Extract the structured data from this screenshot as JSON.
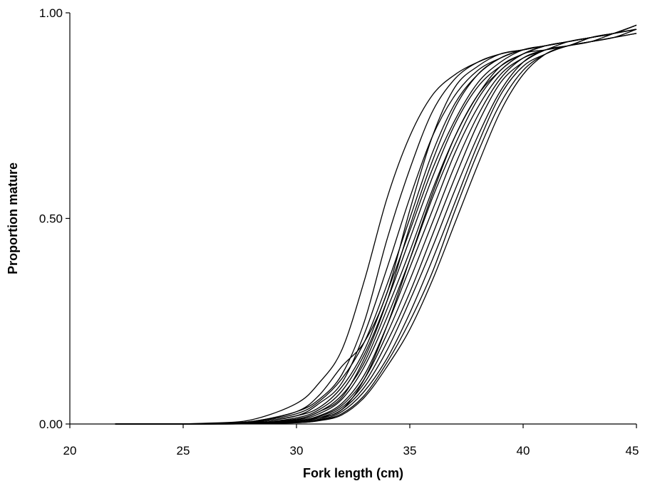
{
  "chart_data": {
    "type": "line",
    "title": "",
    "xlabel": "Fork length (cm)",
    "ylabel": "Proportion mature",
    "xlim": [
      20,
      45
    ],
    "ylim": [
      0,
      1
    ],
    "x_ticks": [
      20,
      25,
      30,
      35,
      40,
      45
    ],
    "x_tick_labels": [
      "20",
      "25",
      "30",
      "35",
      "40",
      "45"
    ],
    "y_ticks": [
      0,
      0.5,
      1
    ],
    "y_tick_labels": [
      "0.00",
      "0.50",
      "1.00"
    ],
    "grid": false,
    "legend": "none",
    "line_color": "#000000",
    "x": [
      22,
      24,
      26,
      28,
      30,
      31,
      32,
      33,
      34,
      35,
      36,
      37,
      38,
      39,
      40,
      41,
      42,
      43,
      44,
      45
    ],
    "series": [
      {
        "values": [
          0.0,
          0.0,
          0.002,
          0.01,
          0.05,
          0.1,
          0.18,
          0.35,
          0.55,
          0.7,
          0.8,
          0.85,
          0.88,
          0.9,
          0.91,
          0.92,
          0.93,
          0.94,
          0.95,
          0.96
        ]
      },
      {
        "values": [
          0.0,
          0.0,
          0.001,
          0.006,
          0.03,
          0.06,
          0.12,
          0.25,
          0.45,
          0.62,
          0.76,
          0.84,
          0.88,
          0.9,
          0.91,
          0.92,
          0.93,
          0.94,
          0.95,
          0.96
        ]
      },
      {
        "values": [
          0.0,
          0.0,
          0.001,
          0.004,
          0.02,
          0.05,
          0.1,
          0.22,
          0.38,
          0.55,
          0.7,
          0.8,
          0.86,
          0.89,
          0.91,
          0.92,
          0.93,
          0.94,
          0.95,
          0.97
        ]
      },
      {
        "values": [
          0.0,
          0.0,
          0.001,
          0.005,
          0.025,
          0.055,
          0.11,
          0.2,
          0.34,
          0.5,
          0.66,
          0.78,
          0.85,
          0.89,
          0.91,
          0.92,
          0.93,
          0.94,
          0.95,
          0.96
        ]
      },
      {
        "values": [
          0.0,
          0.0,
          0.0,
          0.003,
          0.02,
          0.04,
          0.09,
          0.18,
          0.32,
          0.47,
          0.62,
          0.74,
          0.83,
          0.88,
          0.91,
          0.92,
          0.93,
          0.94,
          0.95,
          0.96
        ]
      },
      {
        "values": [
          0.0,
          0.0,
          0.0,
          0.002,
          0.015,
          0.035,
          0.08,
          0.17,
          0.3,
          0.45,
          0.6,
          0.73,
          0.82,
          0.87,
          0.9,
          0.92,
          0.93,
          0.94,
          0.95,
          0.97
        ]
      },
      {
        "values": [
          0.0,
          0.0,
          0.0,
          0.002,
          0.012,
          0.03,
          0.07,
          0.15,
          0.28,
          0.42,
          0.57,
          0.7,
          0.8,
          0.87,
          0.9,
          0.92,
          0.93,
          0.94,
          0.95,
          0.96
        ]
      },
      {
        "values": [
          0.0,
          0.0,
          0.0,
          0.002,
          0.01,
          0.025,
          0.06,
          0.14,
          0.26,
          0.4,
          0.55,
          0.68,
          0.79,
          0.86,
          0.9,
          0.92,
          0.93,
          0.94,
          0.95,
          0.97
        ]
      },
      {
        "values": [
          0.0,
          0.0,
          0.0,
          0.001,
          0.008,
          0.02,
          0.05,
          0.12,
          0.24,
          0.38,
          0.52,
          0.66,
          0.77,
          0.85,
          0.89,
          0.91,
          0.93,
          0.94,
          0.95,
          0.96
        ]
      },
      {
        "values": [
          0.0,
          0.0,
          0.0,
          0.001,
          0.006,
          0.018,
          0.045,
          0.11,
          0.22,
          0.35,
          0.49,
          0.63,
          0.75,
          0.84,
          0.89,
          0.91,
          0.92,
          0.94,
          0.95,
          0.96
        ]
      },
      {
        "values": [
          0.0,
          0.0,
          0.0,
          0.001,
          0.005,
          0.015,
          0.04,
          0.1,
          0.2,
          0.32,
          0.46,
          0.6,
          0.73,
          0.83,
          0.88,
          0.91,
          0.92,
          0.93,
          0.95,
          0.97
        ]
      },
      {
        "values": [
          0.0,
          0.0,
          0.0,
          0.001,
          0.004,
          0.012,
          0.035,
          0.09,
          0.18,
          0.3,
          0.43,
          0.57,
          0.7,
          0.81,
          0.88,
          0.91,
          0.92,
          0.93,
          0.94,
          0.95
        ]
      },
      {
        "values": [
          0.0,
          0.0,
          0.0,
          0.001,
          0.004,
          0.01,
          0.03,
          0.08,
          0.16,
          0.27,
          0.4,
          0.54,
          0.68,
          0.8,
          0.87,
          0.9,
          0.92,
          0.93,
          0.94,
          0.95
        ]
      },
      {
        "values": [
          0.0,
          0.0,
          0.0,
          0.001,
          0.003,
          0.009,
          0.025,
          0.07,
          0.15,
          0.25,
          0.37,
          0.52,
          0.66,
          0.78,
          0.86,
          0.9,
          0.92,
          0.93,
          0.94,
          0.96
        ]
      },
      {
        "values": [
          0.0,
          0.0,
          0.0,
          0.001,
          0.003,
          0.008,
          0.022,
          0.065,
          0.14,
          0.23,
          0.35,
          0.49,
          0.63,
          0.76,
          0.85,
          0.9,
          0.92,
          0.93,
          0.94,
          0.95
        ]
      },
      {
        "values": [
          0.0,
          0.0,
          0.001,
          0.006,
          0.03,
          0.07,
          0.14,
          0.2,
          0.32,
          0.52,
          0.7,
          0.82,
          0.87,
          0.9,
          0.91,
          0.92,
          0.93,
          0.94,
          0.95,
          0.96
        ]
      },
      {
        "values": [
          0.0,
          0.0,
          0.0,
          0.002,
          0.012,
          0.03,
          0.065,
          0.16,
          0.3,
          0.48,
          0.64,
          0.77,
          0.85,
          0.89,
          0.91,
          0.92,
          0.93,
          0.94,
          0.95,
          0.97
        ]
      },
      {
        "values": [
          0.0,
          0.0,
          0.0,
          0.001,
          0.006,
          0.015,
          0.035,
          0.11,
          0.24,
          0.4,
          0.56,
          0.7,
          0.8,
          0.86,
          0.9,
          0.91,
          0.92,
          0.94,
          0.95,
          0.96
        ]
      }
    ]
  }
}
